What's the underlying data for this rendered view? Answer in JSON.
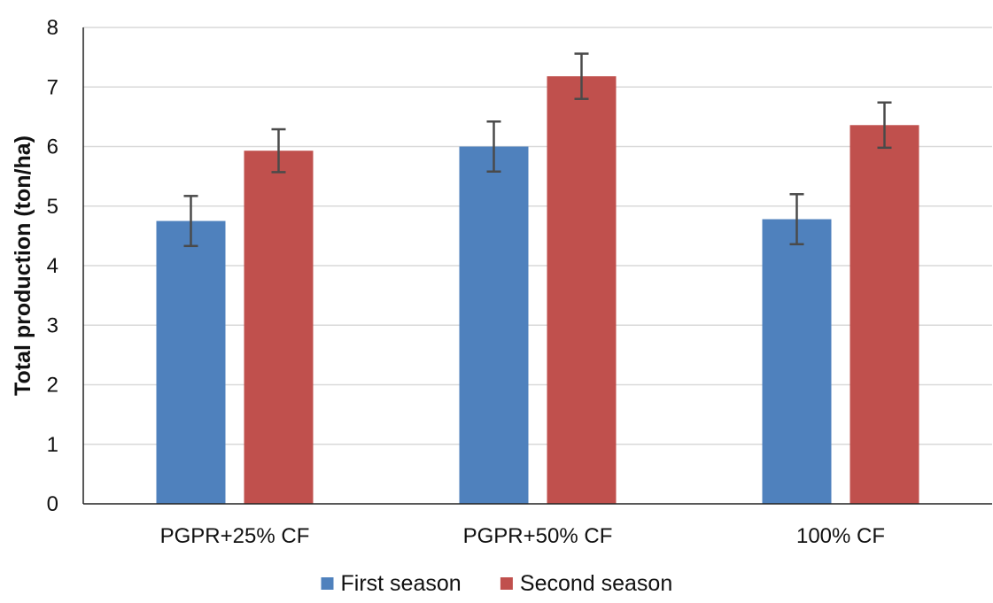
{
  "chart_data": {
    "type": "bar",
    "title": "",
    "xlabel": "",
    "ylabel": "Total production (ton/ha)",
    "ylim": [
      0,
      8
    ],
    "yticks": [
      0,
      1,
      2,
      3,
      4,
      5,
      6,
      7,
      8
    ],
    "grid": true,
    "legend_position": "bottom",
    "categories": [
      "PGPR+25% CF",
      "PGPR+50% CF",
      "100% CF"
    ],
    "series": [
      {
        "name": "First season",
        "color": "#4f81bd",
        "values": [
          4.75,
          6.0,
          4.78
        ],
        "errors": [
          0.42,
          0.42,
          0.42
        ]
      },
      {
        "name": "Second season",
        "color": "#c0504d",
        "values": [
          5.93,
          7.18,
          6.36
        ],
        "errors": [
          0.36,
          0.38,
          0.38
        ]
      }
    ]
  }
}
